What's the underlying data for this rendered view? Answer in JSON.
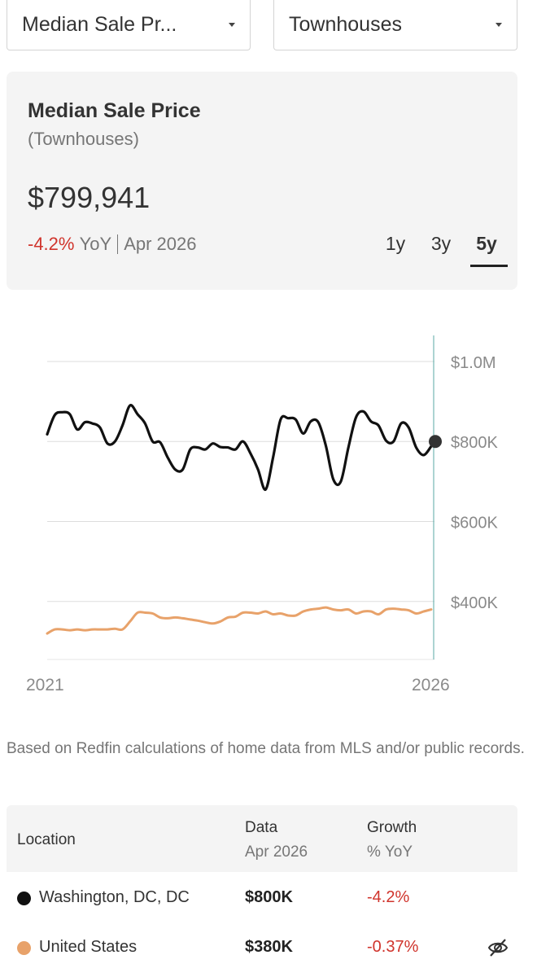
{
  "filters": {
    "metric": {
      "value": "Median Sale Pr..."
    },
    "property_type": {
      "value": "Townhouses"
    }
  },
  "summary": {
    "title": "Median Sale Price",
    "subtitle": "(Townhouses)",
    "price": "$799,941",
    "change": "-4.2%",
    "change_unit": "YoY",
    "period": "Apr 2026",
    "ranges": [
      "1y",
      "3y",
      "5y"
    ],
    "active_range": "5y"
  },
  "chart_data": {
    "type": "line",
    "x_start_label": "2021",
    "x_end_label": "2026",
    "y_ticks": [
      {
        "value": 1000000,
        "label": "$1.0M"
      },
      {
        "value": 800000,
        "label": "$800K"
      },
      {
        "value": 600000,
        "label": "$600K"
      },
      {
        "value": 400000,
        "label": "$400K"
      }
    ],
    "ylim": [
      255000,
      1065000
    ],
    "grid": true,
    "series": [
      {
        "name": "Washington, DC, DC",
        "color": "#111111",
        "values": [
          818000,
          866000,
          873000,
          868000,
          830000,
          848000,
          845000,
          835000,
          795000,
          800000,
          840000,
          890000,
          868000,
          845000,
          800000,
          798000,
          760000,
          730000,
          730000,
          780000,
          785000,
          780000,
          795000,
          786000,
          785000,
          780000,
          800000,
          770000,
          730000,
          680000,
          760000,
          855000,
          858000,
          855000,
          820000,
          850000,
          848000,
          790000,
          705000,
          700000,
          785000,
          860000,
          875000,
          850000,
          840000,
          802000,
          800000,
          845000,
          835000,
          785000,
          766000,
          788000
        ]
      },
      {
        "name": "United States",
        "color": "#e8a26a",
        "values": [
          320000,
          330000,
          330000,
          328000,
          330000,
          328000,
          330000,
          330000,
          330000,
          332000,
          330000,
          350000,
          372000,
          372000,
          370000,
          360000,
          358000,
          360000,
          358000,
          355000,
          352000,
          348000,
          345000,
          350000,
          360000,
          362000,
          372000,
          372000,
          370000,
          375000,
          368000,
          370000,
          365000,
          365000,
          375000,
          380000,
          382000,
          385000,
          380000,
          378000,
          380000,
          370000,
          375000,
          375000,
          368000,
          380000,
          382000,
          380000,
          378000,
          370000,
          375000,
          380000
        ]
      }
    ],
    "current_marker": {
      "value": 799941
    }
  },
  "note": "Based on Redfin calculations of home data from MLS and/or public records.",
  "table": {
    "headers": {
      "location": "Location",
      "data": "Data",
      "data_sub": "Apr 2026",
      "growth": "Growth",
      "growth_sub": "% YoY"
    },
    "rows": [
      {
        "location": "Washington, DC, DC",
        "value": "$800K",
        "growth": "-4.2%",
        "color": "#111111"
      },
      {
        "location": "United States",
        "value": "$380K",
        "growth": "-0.37%",
        "color": "#e8a26a",
        "icon": "eye-off-icon"
      }
    ]
  }
}
